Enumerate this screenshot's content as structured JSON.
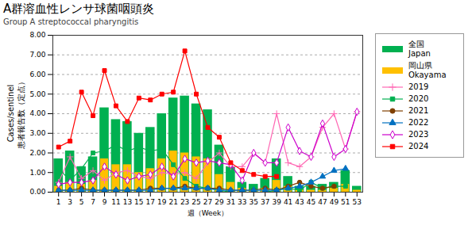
{
  "chart_data": {
    "type": "bar",
    "title": "A群溶血性レンサ球菌咽頭炎",
    "subtitle": "Group A streptococcal pharyngitis",
    "xlabel": "週（Week）",
    "ylabel": "Cases/sentinel\n患者報告数（定点）",
    "x": [
      1,
      3,
      5,
      7,
      9,
      11,
      13,
      15,
      17,
      19,
      21,
      23,
      25,
      27,
      29,
      31,
      33,
      35,
      37,
      39,
      41,
      43,
      45,
      47,
      49,
      51,
      53
    ],
    "xlim": [
      0,
      54
    ],
    "xticks": [
      1,
      3,
      5,
      7,
      9,
      11,
      13,
      15,
      17,
      19,
      21,
      23,
      25,
      27,
      29,
      31,
      33,
      35,
      37,
      39,
      41,
      43,
      45,
      47,
      49,
      51,
      53
    ],
    "ylim": [
      0,
      8
    ],
    "yticks": [
      {
        "value": 0,
        "label": "0.00"
      },
      {
        "value": 1,
        "label": "1.00"
      },
      {
        "value": 2,
        "label": "2.00"
      },
      {
        "value": 3,
        "label": "3.00"
      },
      {
        "value": 4,
        "label": "4.00"
      },
      {
        "value": 5,
        "label": "5.00"
      },
      {
        "value": 6,
        "label": "6.00"
      },
      {
        "value": 7,
        "label": "7.00"
      },
      {
        "value": 8,
        "label": "8.00"
      }
    ],
    "grid": "y",
    "legend": "right",
    "series": [
      {
        "name": "全国\nJapan",
        "type": "bar",
        "color": "#00b050",
        "values": [
          1.7,
          2.1,
          1.3,
          1.8,
          4.3,
          3.7,
          3.6,
          3.0,
          3.3,
          4.0,
          4.8,
          4.9,
          4.5,
          4.2,
          2.4,
          1.3,
          0.5,
          0.4,
          0.7,
          1.7,
          0.8,
          0.3,
          0.3,
          0.4,
          0.5,
          1.1,
          0.3
        ]
      },
      {
        "name": "岡山県\nOkayama",
        "type": "bar",
        "color": "#ffc000",
        "values": [
          0.3,
          0.5,
          0.4,
          0.6,
          1.7,
          1.4,
          1.4,
          1.0,
          1.2,
          1.7,
          2.1,
          2.0,
          1.8,
          1.7,
          0.9,
          0.5,
          0.2,
          0.1,
          0.2,
          0.6,
          0.3,
          0.1,
          0.1,
          0.1,
          0.2,
          0.4,
          0.1
        ]
      },
      {
        "name": "2019",
        "type": "line",
        "color": "#ff69b4",
        "marker": "plus",
        "values": [
          0.5,
          1.8,
          0.7,
          1.1,
          0.6,
          1.0,
          1.1,
          0.8,
          0.7,
          1.0,
          0.9,
          1.0,
          0.7,
          1.5,
          2.0,
          1.3,
          1.3,
          2.0,
          1.5,
          4.0,
          1.5,
          1.3,
          1.8,
          3.3,
          4.0,
          2.2,
          4.1
        ]
      },
      {
        "name": "2020",
        "type": "line",
        "color": "#00b050",
        "marker": "square",
        "values": [
          1.2,
          0.6,
          1.2,
          2.0,
          2.1,
          2.4,
          2.1,
          2.3,
          2.1,
          2.2,
          1.4,
          0.7,
          0.3,
          0.2,
          0.1,
          0.0,
          0.0,
          0.0,
          0.0,
          0.1,
          0.2,
          0.1,
          0.5,
          0.2,
          0.3,
          0.3,
          null
        ]
      },
      {
        "name": "2021",
        "type": "line",
        "color": "#804000",
        "marker": "circle",
        "values": [
          0.1,
          0.1,
          0.2,
          0.1,
          0.1,
          0.1,
          0.1,
          0.1,
          0.2,
          0.2,
          0.2,
          0.3,
          0.2,
          0.2,
          0.2,
          0.1,
          0.1,
          0.1,
          0.2,
          0.1,
          0.3,
          0.5,
          0.3,
          0.2,
          0.3,
          null,
          null
        ]
      },
      {
        "name": "2022",
        "type": "line",
        "color": "#0070c0",
        "marker": "triangle",
        "values": [
          0.1,
          0.1,
          0.1,
          0.1,
          0.1,
          0.1,
          0.1,
          0.1,
          0.1,
          0.2,
          0.2,
          0.2,
          0.2,
          0.2,
          0.1,
          0.1,
          0.1,
          0.1,
          0.1,
          0.1,
          0.2,
          0.3,
          0.5,
          0.8,
          1.1,
          1.2,
          null
        ]
      },
      {
        "name": "2023",
        "type": "line",
        "color": "#cc00cc",
        "marker": "open diamond",
        "values": [
          0.4,
          0.5,
          0.5,
          0.6,
          1.3,
          0.9,
          0.6,
          0.8,
          0.9,
          1.3,
          0.8,
          1.7,
          1.5,
          1.6,
          1.5,
          1.4,
          0.6,
          2.0,
          1.5,
          1.5,
          3.3,
          2.1,
          1.8,
          3.5,
          1.8,
          2.2,
          4.1
        ]
      },
      {
        "name": "2024",
        "type": "line",
        "color": "#ff0000",
        "marker": "square",
        "values": [
          2.3,
          2.6,
          5.1,
          3.9,
          6.2,
          4.4,
          3.6,
          4.8,
          4.7,
          5.0,
          5.1,
          7.2,
          5.0,
          3.3,
          2.8,
          1.5,
          1.1,
          0.9,
          0.8,
          0.8,
          null,
          null,
          null,
          null,
          null,
          null,
          null
        ]
      }
    ]
  }
}
